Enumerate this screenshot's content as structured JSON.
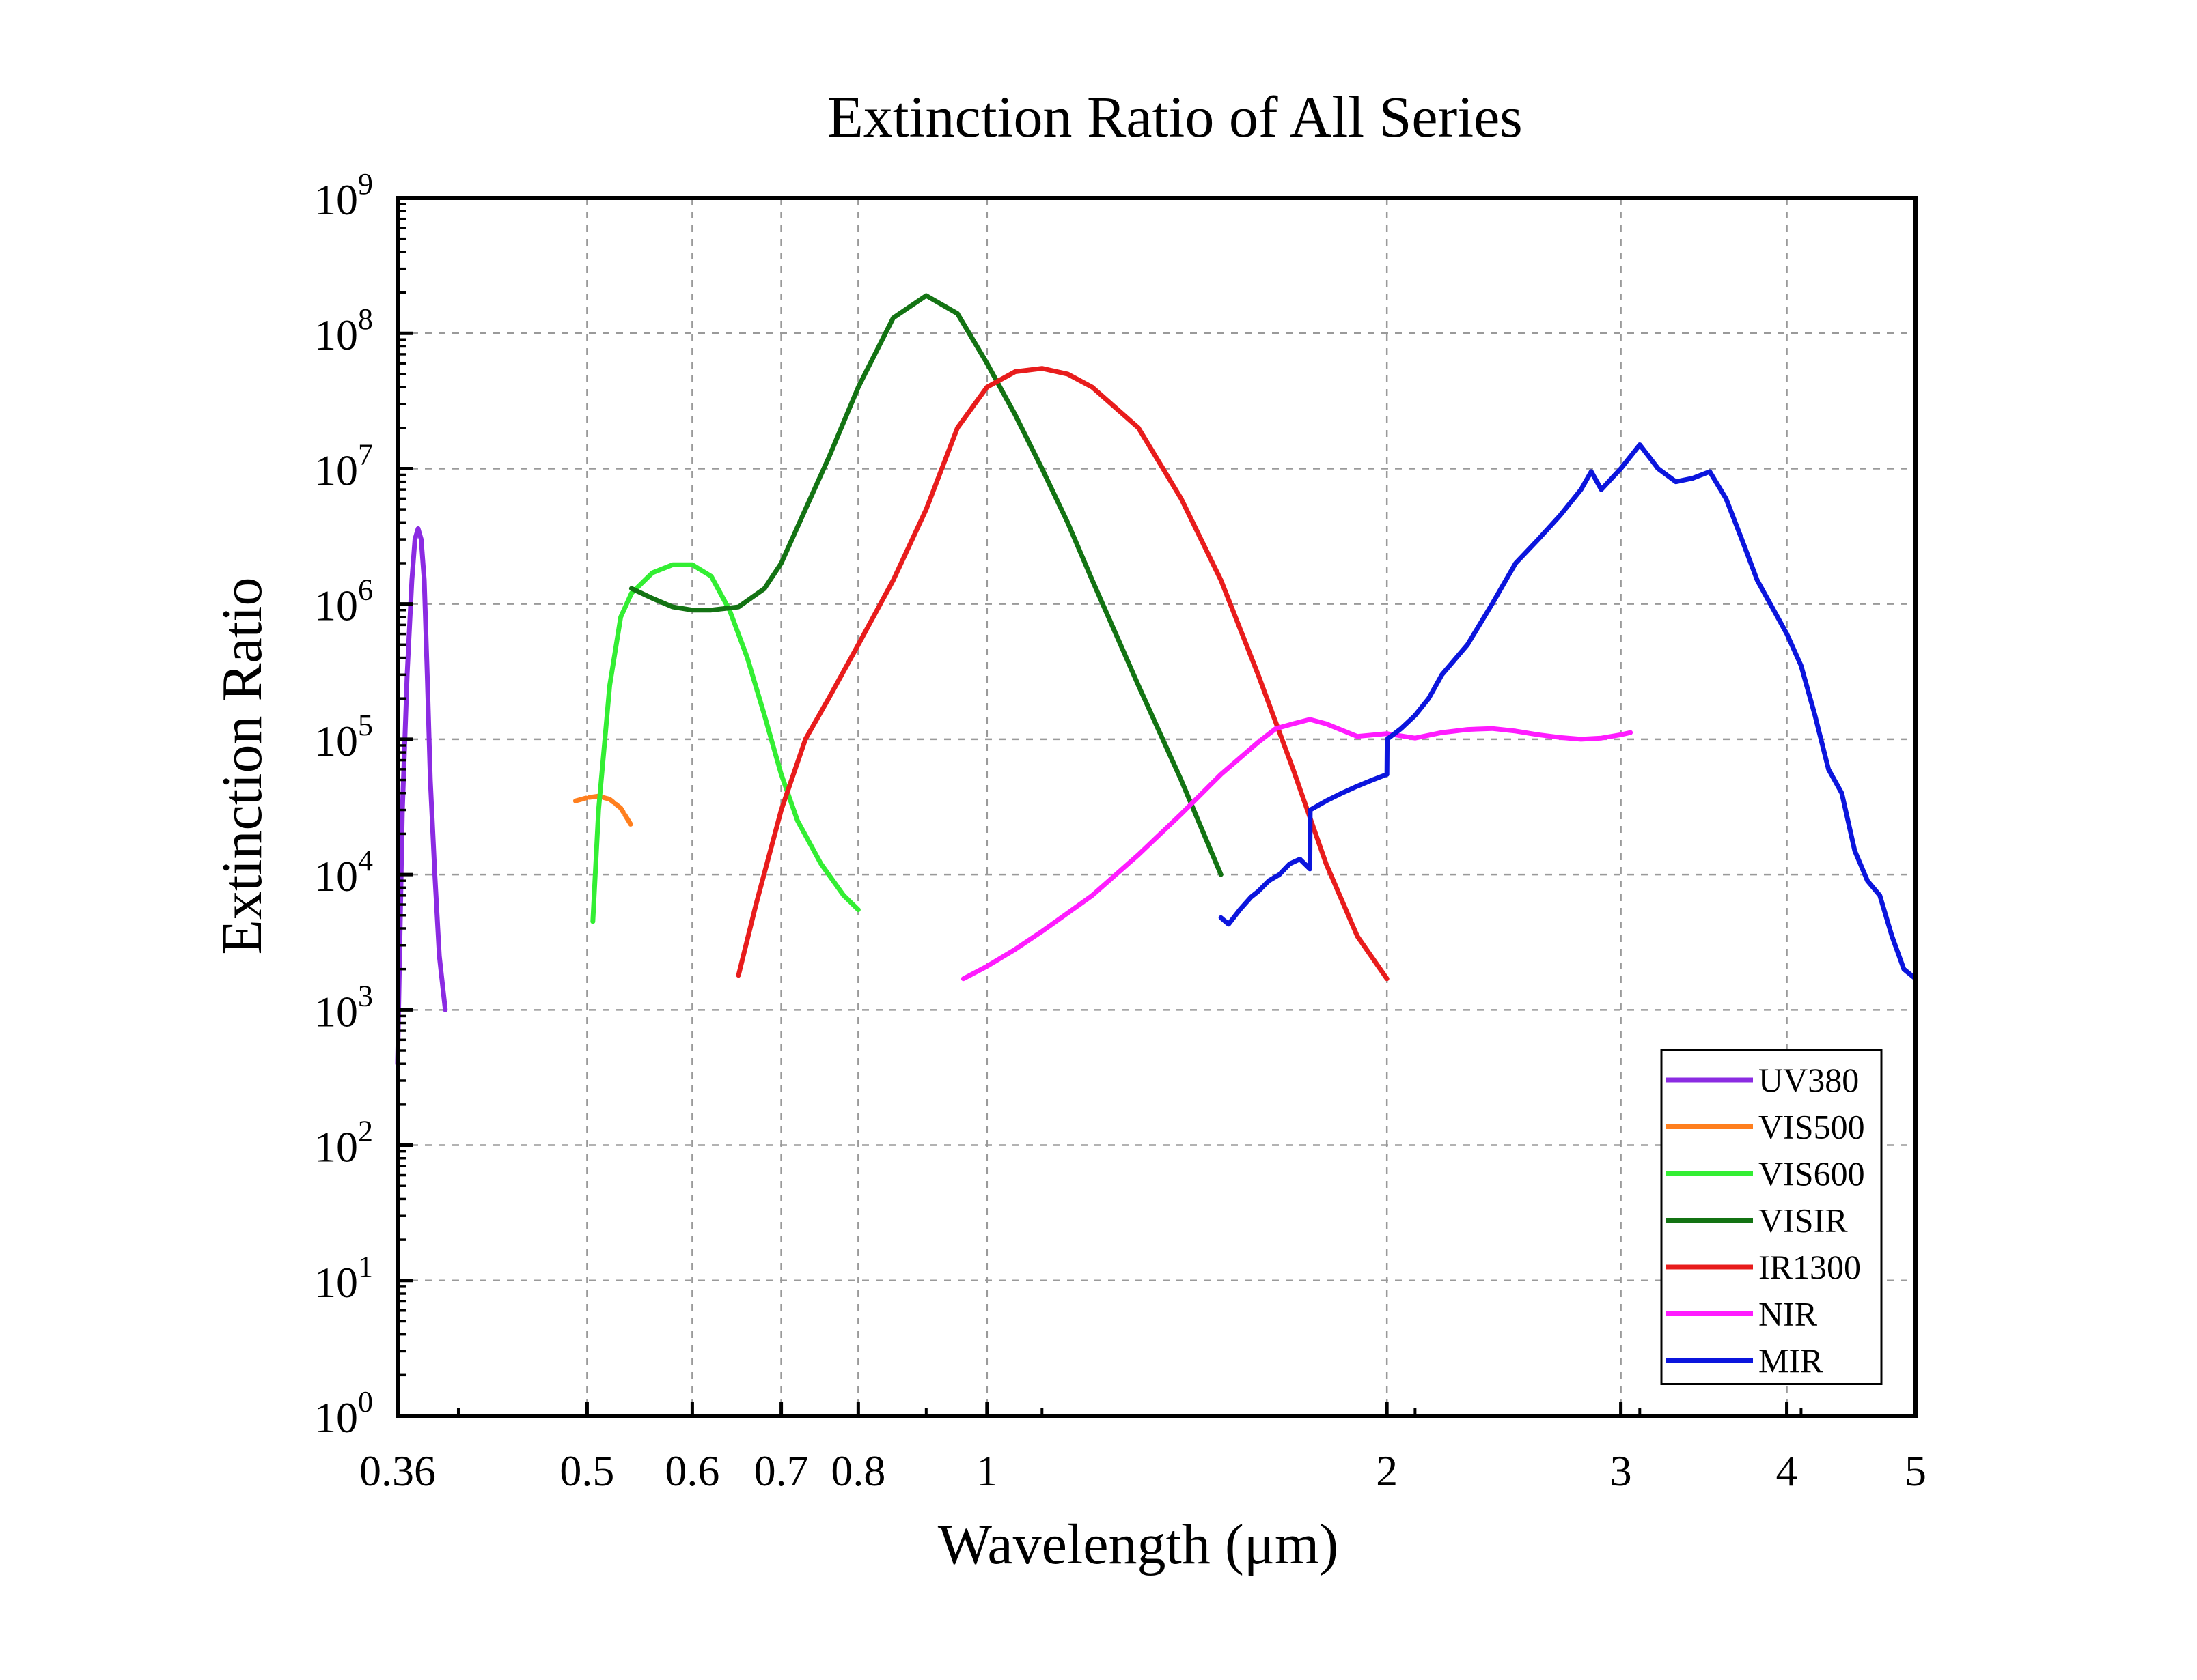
{
  "chart_data": {
    "type": "line",
    "title": "Extinction Ratio of All Series",
    "xlabel": "Wavelength (μm)",
    "ylabel": "Extinction Ratio",
    "x_scale": "log",
    "y_scale": "log",
    "xlim": [
      0.36,
      5
    ],
    "ylim": [
      1,
      1000000000
    ],
    "x_ticks": [
      {
        "value": 0.36,
        "label": "0.36"
      },
      {
        "value": 0.5,
        "label": "0.5"
      },
      {
        "value": 0.6,
        "label": "0.6"
      },
      {
        "value": 0.7,
        "label": "0.7"
      },
      {
        "value": 0.8,
        "label": "0.8"
      },
      {
        "value": 1,
        "label": "1"
      },
      {
        "value": 2,
        "label": "2"
      },
      {
        "value": 3,
        "label": "3"
      },
      {
        "value": 4,
        "label": "4"
      },
      {
        "value": 5,
        "label": "5"
      }
    ],
    "y_ticks": [
      {
        "value": 1,
        "base": "10",
        "exp": "0"
      },
      {
        "value": 10,
        "base": "10",
        "exp": "1"
      },
      {
        "value": 100,
        "base": "10",
        "exp": "2"
      },
      {
        "value": 1000,
        "base": "10",
        "exp": "3"
      },
      {
        "value": 10000,
        "base": "10",
        "exp": "4"
      },
      {
        "value": 100000,
        "base": "10",
        "exp": "5"
      },
      {
        "value": 1000000,
        "base": "10",
        "exp": "6"
      },
      {
        "value": 10000000,
        "base": "10",
        "exp": "7"
      },
      {
        "value": 100000000,
        "base": "10",
        "exp": "8"
      },
      {
        "value": 1000000000,
        "base": "10",
        "exp": "9"
      }
    ],
    "grid": true,
    "legend_position": "bottom-right",
    "series": [
      {
        "name": "UV380",
        "color": "#8b2be2",
        "x": [
          0.36,
          0.363,
          0.366,
          0.369,
          0.371,
          0.373,
          0.375,
          0.377,
          0.379,
          0.381,
          0.384,
          0.387,
          0.391
        ],
        "y": [
          400,
          30000,
          300000,
          1500000,
          3000000,
          3600000,
          3000000,
          1500000,
          300000,
          50000,
          10000,
          2500,
          1000
        ]
      },
      {
        "name": "VIS500",
        "color": "#ff7f1e",
        "x": [
          0.49,
          0.5,
          0.51,
          0.52,
          0.53,
          0.54
        ],
        "y": [
          35000,
          37000,
          38000,
          36000,
          31000,
          23000
        ]
      },
      {
        "name": "VIS600",
        "color": "#33ee33",
        "x": [
          0.505,
          0.51,
          0.52,
          0.53,
          0.54,
          0.56,
          0.58,
          0.6,
          0.62,
          0.64,
          0.66,
          0.68,
          0.7,
          0.72,
          0.75,
          0.78,
          0.8
        ],
        "y": [
          4500,
          30000,
          250000,
          800000,
          1200000,
          1700000,
          1950000,
          1950000,
          1600000,
          900000,
          400000,
          150000,
          55000,
          25000,
          12000,
          7000,
          5500
        ]
      },
      {
        "name": "VISIR",
        "color": "#137313",
        "x": [
          0.54,
          0.56,
          0.58,
          0.6,
          0.62,
          0.65,
          0.68,
          0.7,
          0.73,
          0.76,
          0.8,
          0.85,
          0.9,
          0.95,
          1.0,
          1.05,
          1.1,
          1.15,
          1.2,
          1.3,
          1.4,
          1.5
        ],
        "y": [
          1300000,
          1100000,
          950000,
          900000,
          900000,
          950000,
          1300000,
          2000000,
          5000000,
          12000000,
          40000000,
          130000000,
          190000000,
          140000000,
          60000000,
          25000000,
          10000000,
          4000000,
          1500000,
          250000,
          50000,
          10000
        ]
      },
      {
        "name": "IR1300",
        "color": "#e81c1c",
        "x": [
          0.65,
          0.67,
          0.7,
          0.73,
          0.76,
          0.8,
          0.85,
          0.9,
          0.95,
          1.0,
          1.05,
          1.1,
          1.15,
          1.2,
          1.3,
          1.4,
          1.5,
          1.6,
          1.7,
          1.8,
          1.9,
          2.0
        ],
        "y": [
          1800,
          6000,
          30000,
          100000,
          200000,
          500000,
          1500000,
          5000000,
          20000000,
          40000000,
          52000000,
          55000000,
          50000000,
          40000000,
          20000000,
          6000000,
          1500000,
          300000,
          60000,
          12000,
          3500,
          1700
        ]
      },
      {
        "name": "NIR",
        "color": "#ff1cff",
        "x": [
          0.96,
          1.0,
          1.05,
          1.1,
          1.2,
          1.3,
          1.4,
          1.5,
          1.6,
          1.65,
          1.7,
          1.75,
          1.8,
          1.9,
          2.0,
          2.1,
          2.2,
          2.3,
          2.4,
          2.5,
          2.6,
          2.7,
          2.8,
          2.9,
          3.0,
          3.05
        ],
        "y": [
          1700,
          2100,
          2800,
          3800,
          7000,
          14000,
          28000,
          55000,
          95000,
          120000,
          130000,
          140000,
          130000,
          105000,
          110000,
          102000,
          112000,
          118000,
          120000,
          115000,
          108000,
          103000,
          100000,
          102000,
          108000,
          112000
        ]
      },
      {
        "name": "MIR",
        "color": "#0b15dd",
        "x": [
          1.5,
          1.52,
          1.55,
          1.58,
          1.6,
          1.63,
          1.66,
          1.69,
          1.72,
          1.75,
          1.751,
          1.8,
          1.85,
          1.9,
          1.95,
          2.0,
          2.001,
          2.05,
          2.1,
          2.15,
          2.2,
          2.3,
          2.4,
          2.5,
          2.6,
          2.7,
          2.8,
          2.85,
          2.9,
          3.0,
          3.1,
          3.2,
          3.3,
          3.4,
          3.5,
          3.6,
          3.7,
          3.8,
          4.0,
          4.1,
          4.2,
          4.3,
          4.4,
          4.5,
          4.6,
          4.7,
          4.8,
          4.9,
          5.0
        ],
        "y": [
          4800,
          4300,
          5500,
          6800,
          7500,
          9000,
          10000,
          12000,
          13000,
          11000,
          30000,
          35000,
          40000,
          45000,
          50000,
          55000,
          100000,
          120000,
          150000,
          200000,
          300000,
          500000,
          1000000,
          2000000,
          3000000,
          4500000,
          7000000,
          9500000,
          7000000,
          10000000,
          15000000,
          10000000,
          8000000,
          8500000,
          9500000,
          6000000,
          3000000,
          1500000,
          600000,
          350000,
          150000,
          60000,
          40000,
          15000,
          9000,
          7000,
          3500,
          2000,
          1700
        ]
      }
    ]
  }
}
